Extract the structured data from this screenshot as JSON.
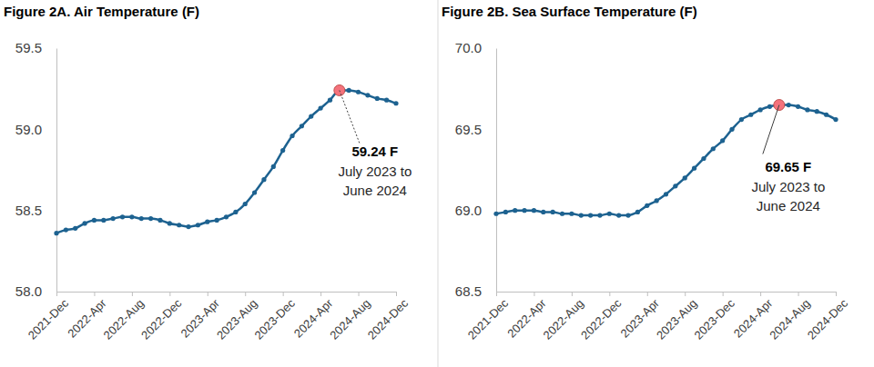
{
  "chart_data": [
    {
      "type": "line",
      "title": "Figure 2A. Air Temperature (F)",
      "categories": [
        "2021-Dec",
        null,
        null,
        null,
        "2022-Apr",
        null,
        null,
        null,
        "2022-Aug",
        null,
        null,
        null,
        "2022-Dec",
        null,
        null,
        null,
        "2023-Apr",
        null,
        null,
        null,
        "2023-Aug",
        null,
        null,
        null,
        "2023-Dec",
        null,
        null,
        null,
        "2024-Apr",
        null,
        null,
        null,
        "2024-Aug",
        null,
        null,
        null,
        "2024-Dec"
      ],
      "values": [
        58.36,
        58.38,
        58.39,
        58.42,
        58.44,
        58.44,
        58.45,
        58.46,
        58.46,
        58.45,
        58.45,
        58.44,
        58.42,
        58.41,
        58.4,
        58.41,
        58.43,
        58.44,
        58.46,
        58.49,
        58.54,
        58.61,
        58.69,
        58.77,
        58.87,
        58.96,
        59.02,
        59.08,
        59.13,
        59.18,
        59.24,
        59.24,
        59.23,
        59.21,
        59.19,
        59.18,
        59.16
      ],
      "value_labels": [
        null,
        null,
        null,
        null,
        null,
        null,
        null,
        null,
        null,
        null,
        null,
        null,
        null,
        null,
        null,
        null,
        null,
        null,
        null,
        null,
        null,
        null,
        null,
        null,
        null,
        null,
        null,
        null,
        null,
        null,
        "59.24 F",
        null,
        null,
        null,
        null,
        null,
        null
      ],
      "annotation": [
        "July 2023 to",
        "June 2024"
      ],
      "color": "#1d6290",
      "marker": "circle",
      "ylim": [
        58.0,
        59.5
      ],
      "yticks": [
        {
          "value": 58,
          "label": "58.0"
        },
        58.5,
        {
          "value": 59,
          "label": "59.0"
        },
        59.5
      ],
      "grid": false
    },
    {
      "type": "line",
      "title": "Figure 2B. Sea Surface Temperature (F)",
      "categories": [
        "2021-Dec",
        null,
        null,
        null,
        "2022-Apr",
        null,
        null,
        null,
        "2022-Aug",
        null,
        null,
        null,
        "2022-Dec",
        null,
        null,
        null,
        "2023-Apr",
        null,
        null,
        null,
        "2023-Aug",
        null,
        null,
        null,
        "2023-Dec",
        null,
        null,
        null,
        "2024-Apr",
        null,
        null,
        null,
        "2024-Aug",
        null,
        null,
        null,
        "2024-Dec"
      ],
      "values": [
        68.98,
        68.99,
        69.0,
        69.0,
        69.0,
        68.99,
        68.99,
        68.98,
        68.98,
        68.97,
        68.97,
        68.97,
        68.98,
        68.97,
        68.97,
        68.99,
        69.03,
        69.06,
        69.1,
        69.15,
        69.2,
        69.26,
        69.32,
        69.38,
        69.43,
        69.5,
        69.56,
        69.59,
        69.62,
        69.64,
        69.65,
        69.65,
        69.64,
        69.62,
        69.61,
        69.59,
        69.56
      ],
      "value_labels": [
        null,
        null,
        null,
        null,
        null,
        null,
        null,
        null,
        null,
        null,
        null,
        null,
        null,
        null,
        null,
        null,
        null,
        null,
        null,
        null,
        null,
        null,
        null,
        null,
        null,
        null,
        null,
        null,
        null,
        null,
        "69.65 F",
        null,
        null,
        null,
        null,
        null,
        null
      ],
      "annotation": [
        "July 2023 to",
        "June 2024"
      ],
      "color": "#1d6290",
      "marker": "circle",
      "ylim": [
        68.5,
        70.0
      ],
      "yticks": [
        68.5,
        {
          "value": 69,
          "label": "69.0"
        },
        69.5,
        {
          "value": 70,
          "label": "70.0"
        }
      ],
      "grid": false
    }
  ]
}
